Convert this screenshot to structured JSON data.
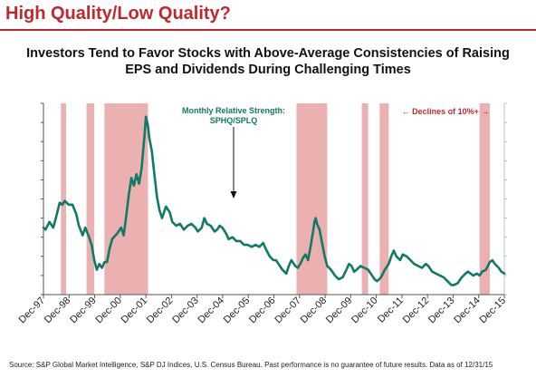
{
  "header": {
    "slide_title": "High Quality/Low Quality?",
    "chart_title_line1": "Investors Tend to Favor Stocks with Above-Average Consistencies of Raising",
    "chart_title_line2": "EPS and Dividends During Challenging Times"
  },
  "footnote": "Source: S&P Global Market Intelligence, S&P DJ Indices, U.S. Census Bureau. Past performance is no guarantee of future results. Data as of 12/31/15",
  "colors": {
    "title": "#c0282e",
    "line": "#0f7a66",
    "shade": "#ebb0b0",
    "annotation_green": "#0f7a66",
    "annotation_red": "#c0282e",
    "axis": "#555555"
  },
  "chart_data": {
    "type": "line",
    "series": [
      {
        "name": "",
        "points": [
          [
            1997.917,
            1.05
          ],
          [
            1998.0,
            1.04
          ],
          [
            1998.15,
            1.08
          ],
          [
            1998.3,
            1.05
          ],
          [
            1998.4,
            1.1
          ],
          [
            1998.55,
            1.18
          ],
          [
            1998.65,
            1.17
          ],
          [
            1998.75,
            1.19
          ],
          [
            1998.9,
            1.17
          ],
          [
            1999.05,
            1.17
          ],
          [
            1999.2,
            1.12
          ],
          [
            1999.3,
            1.06
          ],
          [
            1999.45,
            1.01
          ],
          [
            1999.55,
            1.05
          ],
          [
            1999.7,
            1.0
          ],
          [
            1999.8,
            0.96
          ],
          [
            1999.9,
            0.88
          ],
          [
            2000.0,
            0.83
          ],
          [
            2000.1,
            0.86
          ],
          [
            2000.2,
            0.84
          ],
          [
            2000.3,
            0.87
          ],
          [
            2000.4,
            0.87
          ],
          [
            2000.5,
            0.94
          ],
          [
            2000.6,
            0.99
          ],
          [
            2000.8,
            1.02
          ],
          [
            2000.95,
            1.05
          ],
          [
            2001.05,
            1.01
          ],
          [
            2001.15,
            1.11
          ],
          [
            2001.25,
            1.22
          ],
          [
            2001.35,
            1.31
          ],
          [
            2001.45,
            1.27
          ],
          [
            2001.55,
            1.33
          ],
          [
            2001.65,
            1.28
          ],
          [
            2001.75,
            1.36
          ],
          [
            2001.85,
            1.51
          ],
          [
            2001.92,
            1.63
          ],
          [
            2002.0,
            1.58
          ],
          [
            2002.05,
            1.52
          ],
          [
            2002.15,
            1.45
          ],
          [
            2002.25,
            1.33
          ],
          [
            2002.35,
            1.21
          ],
          [
            2002.45,
            1.14
          ],
          [
            2002.55,
            1.1
          ],
          [
            2002.7,
            1.16
          ],
          [
            2002.85,
            1.13
          ],
          [
            2002.95,
            1.08
          ],
          [
            2003.1,
            1.06
          ],
          [
            2003.25,
            1.07
          ],
          [
            2003.4,
            1.04
          ],
          [
            2003.55,
            1.06
          ],
          [
            2003.7,
            1.07
          ],
          [
            2003.85,
            1.05
          ],
          [
            2003.95,
            1.03
          ],
          [
            2004.1,
            1.05
          ],
          [
            2004.2,
            1.1
          ],
          [
            2004.3,
            1.07
          ],
          [
            2004.45,
            1.06
          ],
          [
            2004.6,
            1.03
          ],
          [
            2004.7,
            1.04
          ],
          [
            2004.8,
            1.06
          ],
          [
            2004.9,
            1.05
          ],
          [
            2005.05,
            1.02
          ],
          [
            2005.15,
            0.99
          ],
          [
            2005.3,
            1.0
          ],
          [
            2005.45,
            0.98
          ],
          [
            2005.6,
            0.98
          ],
          [
            2005.75,
            0.96
          ],
          [
            2005.9,
            0.96
          ],
          [
            2006.05,
            0.95
          ],
          [
            2006.2,
            0.96
          ],
          [
            2006.35,
            0.95
          ],
          [
            2006.5,
            0.97
          ],
          [
            2006.6,
            0.94
          ],
          [
            2006.75,
            0.9
          ],
          [
            2006.9,
            0.88
          ],
          [
            2007.0,
            0.88
          ],
          [
            2007.1,
            0.86
          ],
          [
            2007.25,
            0.83
          ],
          [
            2007.4,
            0.81
          ],
          [
            2007.5,
            0.85
          ],
          [
            2007.6,
            0.88
          ],
          [
            2007.75,
            0.85
          ],
          [
            2007.85,
            0.84
          ],
          [
            2007.95,
            0.86
          ],
          [
            2008.05,
            0.89
          ],
          [
            2008.15,
            0.91
          ],
          [
            2008.25,
            0.88
          ],
          [
            2008.35,
            0.95
          ],
          [
            2008.45,
            1.03
          ],
          [
            2008.5,
            1.08
          ],
          [
            2008.55,
            1.1
          ],
          [
            2008.6,
            1.07
          ],
          [
            2008.7,
            1.04
          ],
          [
            2008.8,
            0.97
          ],
          [
            2008.9,
            0.9
          ],
          [
            2009.0,
            0.85
          ],
          [
            2009.15,
            0.83
          ],
          [
            2009.3,
            0.8
          ],
          [
            2009.45,
            0.78
          ],
          [
            2009.6,
            0.79
          ],
          [
            2009.75,
            0.83
          ],
          [
            2009.85,
            0.86
          ],
          [
            2009.95,
            0.85
          ],
          [
            2010.05,
            0.82
          ],
          [
            2010.15,
            0.83
          ],
          [
            2010.3,
            0.85
          ],
          [
            2010.45,
            0.84
          ],
          [
            2010.6,
            0.83
          ],
          [
            2010.75,
            0.8
          ],
          [
            2010.85,
            0.78
          ],
          [
            2010.95,
            0.77
          ],
          [
            2011.1,
            0.79
          ],
          [
            2011.25,
            0.83
          ],
          [
            2011.4,
            0.86
          ],
          [
            2011.5,
            0.9
          ],
          [
            2011.6,
            0.93
          ],
          [
            2011.7,
            0.9
          ],
          [
            2011.85,
            0.88
          ],
          [
            2011.95,
            0.91
          ],
          [
            2012.1,
            0.9
          ],
          [
            2012.25,
            0.88
          ],
          [
            2012.4,
            0.86
          ],
          [
            2012.55,
            0.85
          ],
          [
            2012.7,
            0.84
          ],
          [
            2012.85,
            0.86
          ],
          [
            2012.95,
            0.85
          ],
          [
            2013.1,
            0.82
          ],
          [
            2013.25,
            0.81
          ],
          [
            2013.4,
            0.8
          ],
          [
            2013.55,
            0.79
          ],
          [
            2013.7,
            0.77
          ],
          [
            2013.85,
            0.75
          ],
          [
            2013.95,
            0.75
          ],
          [
            2014.1,
            0.76
          ],
          [
            2014.25,
            0.79
          ],
          [
            2014.4,
            0.81
          ],
          [
            2014.5,
            0.82
          ],
          [
            2014.6,
            0.81
          ],
          [
            2014.7,
            0.8
          ],
          [
            2014.85,
            0.81
          ],
          [
            2014.95,
            0.8
          ],
          [
            2015.05,
            0.82
          ],
          [
            2015.2,
            0.83
          ],
          [
            2015.35,
            0.87
          ],
          [
            2015.45,
            0.88
          ],
          [
            2015.55,
            0.86
          ],
          [
            2015.7,
            0.84
          ],
          [
            2015.8,
            0.82
          ],
          [
            2015.92,
            0.81
          ]
        ]
      }
    ],
    "shaded_periods": [
      [
        1998.6,
        1998.8
      ],
      [
        1999.6,
        1999.9
      ],
      [
        2000.3,
        2002.0
      ],
      [
        2007.8,
        2009.0
      ],
      [
        2010.35,
        2010.6
      ],
      [
        2011.05,
        2011.4
      ],
      [
        2014.95,
        2015.35
      ]
    ],
    "x_ticks": [
      "Dec-97",
      "Dec-98",
      "Dec-99",
      "Dec-00",
      "Dec-01",
      "Dec-02",
      "Dec-03",
      "Dec-04",
      "Dec-05",
      "Dec-06",
      "Dec-07",
      "Dec-08",
      "Dec-09",
      "Dec-10",
      "Dec-11",
      "Dec-12",
      "Dec-13",
      "Dec-14",
      "Dec-15"
    ],
    "x_tick_values": [
      1997.917,
      1998.917,
      1999.917,
      2000.917,
      2001.917,
      2002.917,
      2003.917,
      2004.917,
      2005.917,
      2006.917,
      2007.917,
      2008.917,
      2009.917,
      2010.917,
      2011.917,
      2012.917,
      2013.917,
      2014.917,
      2015.917
    ],
    "xlim": [
      1997.917,
      2015.917
    ],
    "ylim": [
      0.7,
      1.7
    ],
    "y_tick_count": 10,
    "annotations": {
      "strength_line1": "Monthly Relative Strength:",
      "strength_line2": "SPHQ/SPLQ",
      "declines": "← Declines of 10%+ →"
    }
  }
}
